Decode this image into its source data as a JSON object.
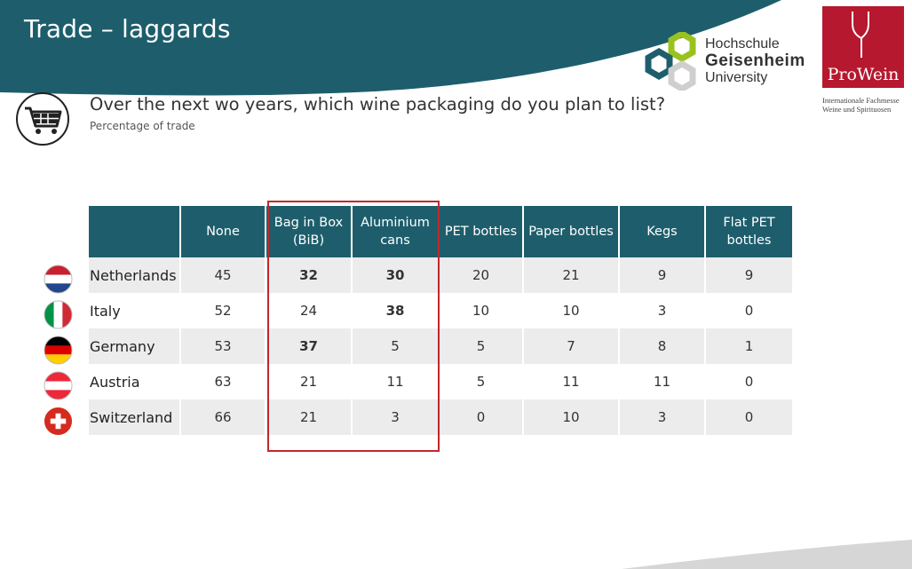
{
  "header": {
    "title": "Trade – laggards"
  },
  "logos": {
    "hochschule": {
      "line1": "Hochschule",
      "line2": "Geisenheim",
      "line3": "University"
    },
    "prowein": {
      "name": "ProWein",
      "tagline_line1": "Internationale Fachmesse",
      "tagline_line2": "Weine und Spirituosen"
    }
  },
  "icons": {
    "cart": "shopping-cart-icon"
  },
  "question": {
    "text": "Over the next wo years, which wine packaging do you plan to list?",
    "subtitle": "Percentage of trade"
  },
  "colors": {
    "header_teal": "#1e5e6c",
    "highlight_red": "#c0282d",
    "prowein_red": "#b5182f",
    "hgu_green": "#9ac21f"
  },
  "table": {
    "columns": [
      "",
      "None",
      "Bag in Box (BiB)",
      "Aluminium cans",
      "PET bottles",
      "Paper bottles",
      "Kegs",
      "Flat PET bottles"
    ],
    "rows": [
      {
        "country": "Netherlands",
        "flag": "netherlands-flag-icon",
        "values": [
          "45",
          "32",
          "30",
          "20",
          "21",
          "9",
          "9"
        ],
        "bold": [
          false,
          true,
          true,
          false,
          false,
          false,
          false
        ]
      },
      {
        "country": "Italy",
        "flag": "italy-flag-icon",
        "values": [
          "52",
          "24",
          "38",
          "10",
          "10",
          "3",
          "0"
        ],
        "bold": [
          false,
          false,
          true,
          false,
          false,
          false,
          false
        ]
      },
      {
        "country": "Germany",
        "flag": "germany-flag-icon",
        "values": [
          "53",
          "37",
          "5",
          "5",
          "7",
          "8",
          "1"
        ],
        "bold": [
          false,
          true,
          false,
          false,
          false,
          false,
          false
        ]
      },
      {
        "country": "Austria",
        "flag": "austria-flag-icon",
        "values": [
          "63",
          "21",
          "11",
          "5",
          "11",
          "11",
          "0"
        ],
        "bold": [
          false,
          false,
          false,
          false,
          false,
          false,
          false
        ]
      },
      {
        "country": "Switzerland",
        "flag": "switzerland-flag-icon",
        "values": [
          "66",
          "21",
          "3",
          "0",
          "10",
          "3",
          "0"
        ],
        "bold": [
          false,
          false,
          false,
          false,
          false,
          false,
          false
        ]
      }
    ]
  }
}
